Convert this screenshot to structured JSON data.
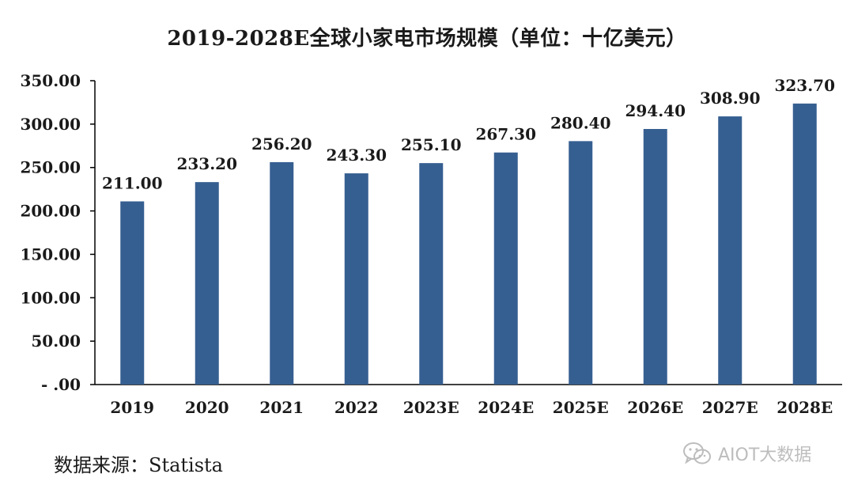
{
  "title": "2019-2028E全球小家电市场规模（单位：十亿美元）",
  "source": "数据来源：Statista",
  "watermark": "AIOT大数据",
  "watermark_icon": "wechat-icon",
  "colors": {
    "bar": "#365f91",
    "axis": "#000000",
    "text": "#1a1a1a",
    "watermark": "#bdbdbd"
  },
  "chart_data": {
    "type": "bar",
    "title": "2019-2028E全球小家电市场规模（单位：十亿美元）",
    "xlabel": "",
    "ylabel": "",
    "categories": [
      "2019",
      "2020",
      "2021",
      "2022",
      "2023E",
      "2024E",
      "2025E",
      "2026E",
      "2027E",
      "2028E"
    ],
    "values": [
      211.0,
      233.2,
      256.2,
      243.3,
      255.1,
      267.3,
      280.4,
      294.4,
      308.9,
      323.7
    ],
    "data_labels": [
      "211.00",
      "233.20",
      "256.20",
      "243.30",
      "255.10",
      "267.30",
      "280.40",
      "294.40",
      "308.90",
      "323.70"
    ],
    "ylim": [
      0,
      350
    ],
    "yticks": [
      "- .00",
      "50.00",
      "100.00",
      "150.00",
      "200.00",
      "250.00",
      "300.00",
      "350.00"
    ],
    "grid": false,
    "legend": "none"
  }
}
